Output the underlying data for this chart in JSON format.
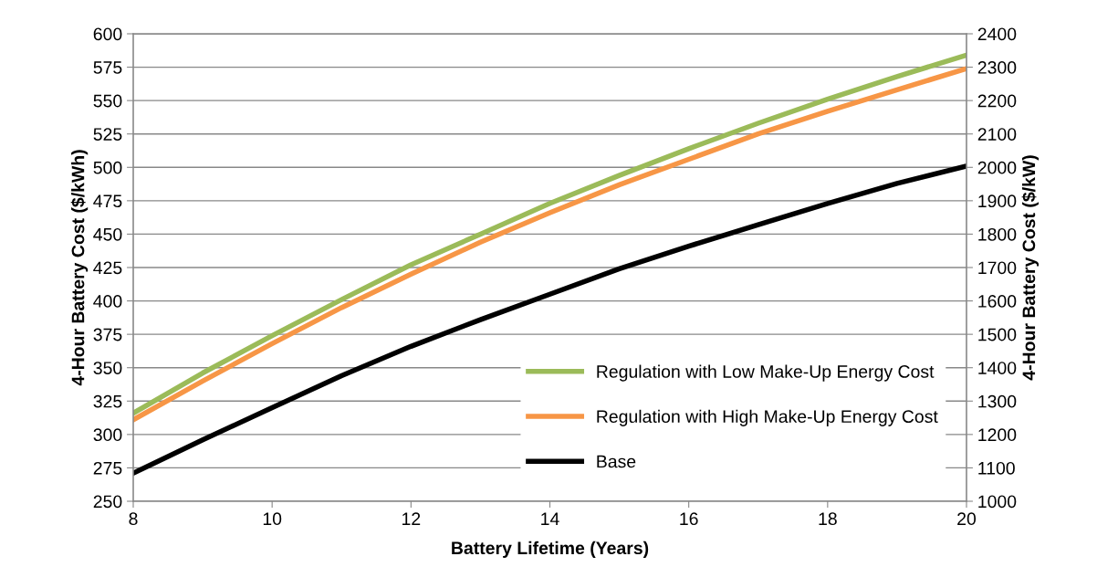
{
  "chart_data": {
    "type": "line",
    "xlabel": "Battery Lifetime (Years)",
    "ylabel": "4-Hour Battery Cost ($/kWh)",
    "y2label": "4-Hour Battery Cost ($/kW)",
    "x": [
      8,
      9,
      10,
      11,
      12,
      13,
      14,
      15,
      16,
      17,
      18,
      19,
      20
    ],
    "series": [
      {
        "name": "Regulation with Low Make-Up Energy Cost",
        "color": "#9bbb59",
        "values": [
          316,
          346,
          374,
          401,
          427,
          450,
          473,
          494,
          514,
          533,
          551,
          568,
          584
        ]
      },
      {
        "name": "Regulation with High Make-Up Energy Cost",
        "color": "#f79646",
        "values": [
          311,
          340,
          368,
          395,
          420,
          444,
          466,
          487,
          506,
          525,
          542,
          558,
          574
        ]
      },
      {
        "name": "Base",
        "color": "#000000",
        "values": [
          271,
          296,
          320,
          344,
          366,
          386,
          405,
          424,
          441,
          457,
          473,
          488,
          501
        ]
      }
    ],
    "xlim": [
      8,
      20
    ],
    "xticks": [
      8,
      10,
      12,
      14,
      16,
      18,
      20
    ],
    "ylim": [
      250,
      600
    ],
    "yticks": [
      250,
      275,
      300,
      325,
      350,
      375,
      400,
      425,
      450,
      475,
      500,
      525,
      550,
      575,
      600
    ],
    "y2lim": [
      1000,
      2400
    ],
    "y2ticks": [
      1000,
      1100,
      1200,
      1300,
      1400,
      1500,
      1600,
      1700,
      1800,
      1900,
      2000,
      2100,
      2200,
      2300,
      2400
    ],
    "grid": "y",
    "legend": "bottom right",
    "marker": "none",
    "line_style": "solid"
  }
}
